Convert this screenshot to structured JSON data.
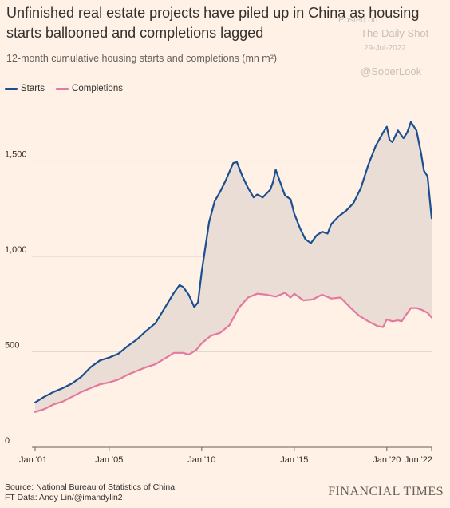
{
  "title": "Unfinished real estate projects have piled up in China as housing starts ballooned and completions lagged",
  "subtitle": "12-month cumulative housing starts and completions (mn m²)",
  "watermark": {
    "posted": "Posted on",
    "source": "The Daily Shot",
    "date": "29-Jul-2022",
    "handle": "@SoberLook"
  },
  "legend": [
    {
      "label": "Starts",
      "color": "#1B4F8F"
    },
    {
      "label": "Completions",
      "color": "#E4789E"
    }
  ],
  "footer": {
    "source": "Source: National Bureau of Statistics of China",
    "credit": "FT Data: Andy Lin/@imandylin2"
  },
  "brand": "FINANCIAL TIMES",
  "chart_data": {
    "type": "area",
    "ylim": [
      0,
      1800
    ],
    "xlim": [
      2001.0,
      2022.42
    ],
    "yticks": [
      {
        "value": 0,
        "label": "0"
      },
      {
        "value": 500,
        "label": "500"
      },
      {
        "value": 1000,
        "label": "1,000"
      },
      {
        "value": 1500,
        "label": "1,500"
      }
    ],
    "xticks": [
      {
        "value": 2001.0,
        "label": "Jan '01"
      },
      {
        "value": 2005.0,
        "label": "Jan '05"
      },
      {
        "value": 2010.0,
        "label": "Jan '10"
      },
      {
        "value": 2015.0,
        "label": "Jan '15"
      },
      {
        "value": 2020.0,
        "label": "Jan '20"
      },
      {
        "value": 2022.42,
        "label": "Jun '22"
      }
    ],
    "grid": true,
    "fill_between_series": true,
    "fill_color": "#E9DDD6",
    "series": [
      {
        "name": "Starts",
        "color": "#1B4F8F",
        "points": [
          [
            2001.0,
            235
          ],
          [
            2001.5,
            265
          ],
          [
            2002.0,
            290
          ],
          [
            2002.5,
            310
          ],
          [
            2003.0,
            335
          ],
          [
            2003.5,
            370
          ],
          [
            2004.0,
            420
          ],
          [
            2004.5,
            455
          ],
          [
            2005.0,
            470
          ],
          [
            2005.5,
            490
          ],
          [
            2006.0,
            530
          ],
          [
            2006.5,
            565
          ],
          [
            2007.0,
            610
          ],
          [
            2007.5,
            650
          ],
          [
            2008.0,
            730
          ],
          [
            2008.5,
            810
          ],
          [
            2008.8,
            850
          ],
          [
            2009.0,
            840
          ],
          [
            2009.3,
            800
          ],
          [
            2009.6,
            735
          ],
          [
            2009.8,
            760
          ],
          [
            2010.0,
            920
          ],
          [
            2010.4,
            1180
          ],
          [
            2010.7,
            1290
          ],
          [
            2011.0,
            1340
          ],
          [
            2011.3,
            1400
          ],
          [
            2011.7,
            1490
          ],
          [
            2011.9,
            1495
          ],
          [
            2012.2,
            1420
          ],
          [
            2012.5,
            1360
          ],
          [
            2012.8,
            1310
          ],
          [
            2013.0,
            1325
          ],
          [
            2013.3,
            1310
          ],
          [
            2013.7,
            1350
          ],
          [
            2013.85,
            1390
          ],
          [
            2014.0,
            1455
          ],
          [
            2014.2,
            1400
          ],
          [
            2014.5,
            1320
          ],
          [
            2014.8,
            1300
          ],
          [
            2015.0,
            1225
          ],
          [
            2015.3,
            1150
          ],
          [
            2015.6,
            1090
          ],
          [
            2015.9,
            1070
          ],
          [
            2016.2,
            1110
          ],
          [
            2016.5,
            1130
          ],
          [
            2016.8,
            1120
          ],
          [
            2017.0,
            1170
          ],
          [
            2017.4,
            1210
          ],
          [
            2017.8,
            1240
          ],
          [
            2018.2,
            1280
          ],
          [
            2018.6,
            1360
          ],
          [
            2019.0,
            1480
          ],
          [
            2019.4,
            1580
          ],
          [
            2019.8,
            1650
          ],
          [
            2020.0,
            1680
          ],
          [
            2020.15,
            1610
          ],
          [
            2020.3,
            1600
          ],
          [
            2020.6,
            1660
          ],
          [
            2020.9,
            1620
          ],
          [
            2021.1,
            1650
          ],
          [
            2021.3,
            1705
          ],
          [
            2021.6,
            1660
          ],
          [
            2021.85,
            1540
          ],
          [
            2022.0,
            1450
          ],
          [
            2022.2,
            1420
          ],
          [
            2022.42,
            1200
          ]
        ]
      },
      {
        "name": "Completions",
        "color": "#E4789E",
        "points": [
          [
            2001.0,
            185
          ],
          [
            2001.5,
            200
          ],
          [
            2002.0,
            225
          ],
          [
            2002.5,
            240
          ],
          [
            2003.0,
            265
          ],
          [
            2003.5,
            290
          ],
          [
            2004.0,
            310
          ],
          [
            2004.5,
            330
          ],
          [
            2005.0,
            340
          ],
          [
            2005.5,
            355
          ],
          [
            2006.0,
            380
          ],
          [
            2006.5,
            400
          ],
          [
            2007.0,
            420
          ],
          [
            2007.5,
            435
          ],
          [
            2008.0,
            465
          ],
          [
            2008.5,
            495
          ],
          [
            2009.0,
            495
          ],
          [
            2009.3,
            485
          ],
          [
            2009.7,
            510
          ],
          [
            2010.0,
            545
          ],
          [
            2010.5,
            585
          ],
          [
            2011.0,
            600
          ],
          [
            2011.5,
            640
          ],
          [
            2012.0,
            730
          ],
          [
            2012.5,
            785
          ],
          [
            2013.0,
            805
          ],
          [
            2013.5,
            800
          ],
          [
            2014.0,
            790
          ],
          [
            2014.5,
            810
          ],
          [
            2014.8,
            785
          ],
          [
            2015.0,
            805
          ],
          [
            2015.5,
            770
          ],
          [
            2016.0,
            775
          ],
          [
            2016.5,
            800
          ],
          [
            2017.0,
            780
          ],
          [
            2017.5,
            785
          ],
          [
            2018.0,
            735
          ],
          [
            2018.5,
            690
          ],
          [
            2019.0,
            660
          ],
          [
            2019.5,
            635
          ],
          [
            2019.8,
            630
          ],
          [
            2020.0,
            670
          ],
          [
            2020.3,
            660
          ],
          [
            2020.6,
            665
          ],
          [
            2020.8,
            660
          ],
          [
            2021.0,
            690
          ],
          [
            2021.3,
            730
          ],
          [
            2021.6,
            730
          ],
          [
            2021.9,
            720
          ],
          [
            2022.2,
            705
          ],
          [
            2022.42,
            680
          ]
        ]
      }
    ]
  }
}
